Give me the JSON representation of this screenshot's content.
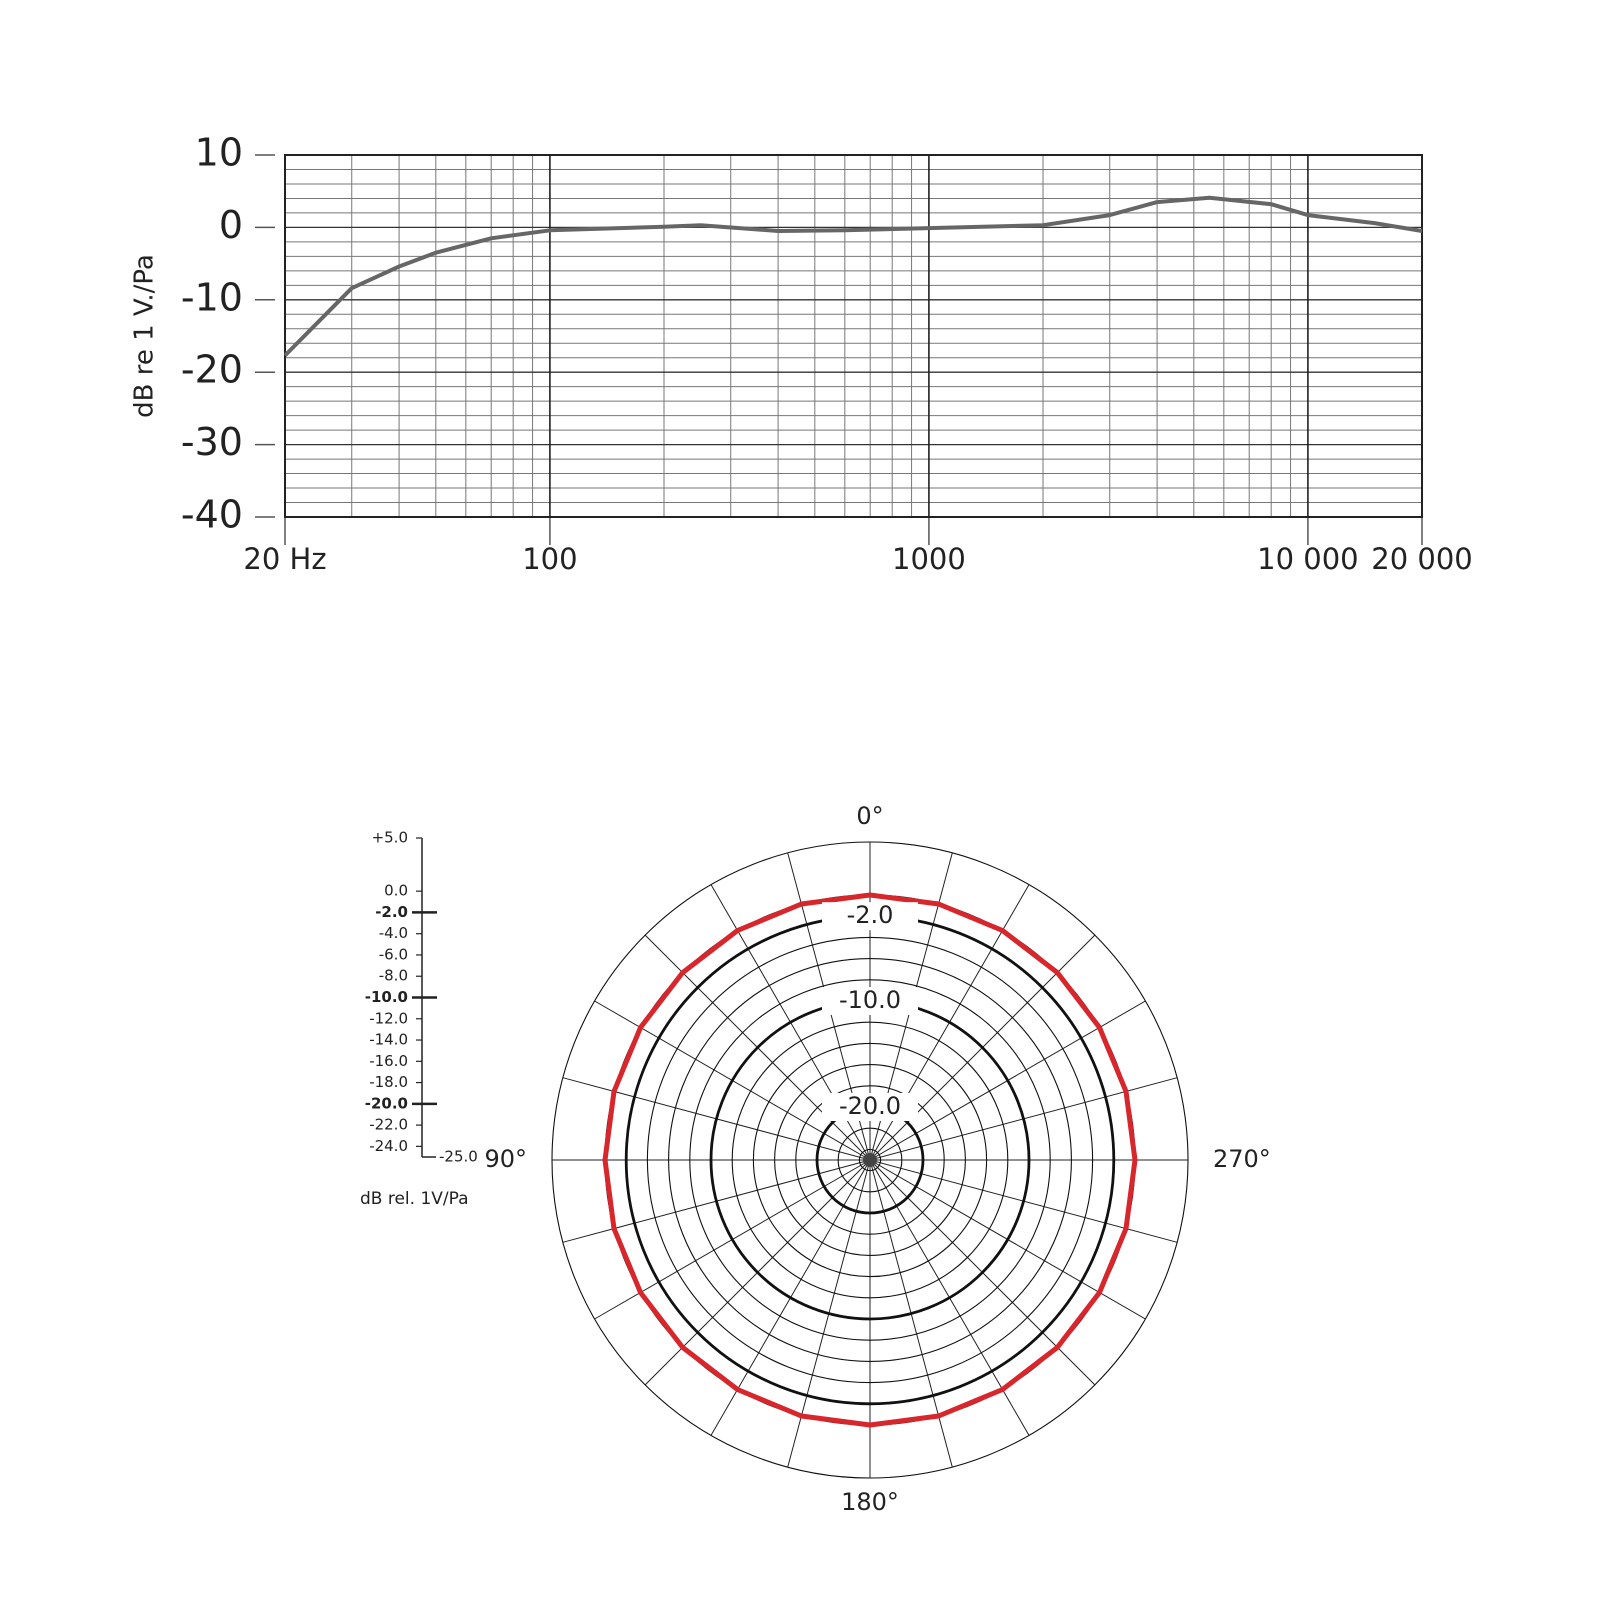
{
  "chart_data": [
    {
      "type": "line",
      "ylabel": "dB re 1 V./Pa",
      "xscale": "log",
      "x": [
        20,
        30,
        40,
        50,
        70,
        100,
        200,
        250,
        400,
        600,
        1000,
        2000,
        3000,
        4000,
        5500,
        8000,
        10000,
        15000,
        20000
      ],
      "series": [
        {
          "color": "#666666",
          "values": [
            -17.7,
            -8.4,
            -5.4,
            -3.5,
            -1.5,
            -0.4,
            0.1,
            0.3,
            -0.5,
            -0.4,
            -0.1,
            0.3,
            1.7,
            3.5,
            4.1,
            3.2,
            1.7,
            0.6,
            -0.5
          ]
        }
      ],
      "xlim": [
        20,
        20000
      ],
      "ylim": [
        -40,
        10
      ],
      "xticks": [
        {
          "value": 20,
          "label": "20 Hz"
        },
        100,
        1000,
        {
          "value": 10000,
          "label": "10 000"
        },
        {
          "value": 20000,
          "label": "20 000"
        }
      ],
      "yticks": [
        10,
        0,
        -10,
        -20,
        -30,
        -40
      ],
      "grid": true
    },
    {
      "type": "polar",
      "direction": "counterclockwise",
      "rlabel": "dB rel. 1V/Pa",
      "theta": [
        0,
        15,
        30,
        45,
        60,
        75,
        90,
        105,
        120,
        135,
        150,
        165,
        180,
        195,
        210,
        225,
        240,
        255,
        270,
        285,
        300,
        315,
        330,
        345
      ],
      "series": [
        {
          "color": "#d7262c",
          "values": [
            0,
            0,
            0,
            0,
            0,
            0,
            0,
            0,
            0,
            0,
            0,
            0,
            0,
            0,
            0,
            0,
            0,
            0,
            0,
            0,
            0,
            0,
            0,
            0
          ]
        }
      ],
      "rlim": [
        -25,
        5
      ],
      "rticks": [
        {
          "value": 5,
          "label": "+5.0"
        },
        {
          "value": 0,
          "label": "0.0"
        },
        {
          "value": -2,
          "label": "-2.0"
        },
        {
          "value": -4,
          "label": "-4.0"
        },
        {
          "value": -6,
          "label": "-6.0"
        },
        {
          "value": -8,
          "label": "-8.0"
        },
        {
          "value": -10,
          "label": "-10.0"
        },
        {
          "value": -12,
          "label": "-12.0"
        },
        {
          "value": -14,
          "label": "-14.0"
        },
        {
          "value": -16,
          "label": "-16.0"
        },
        {
          "value": -18,
          "label": "-18.0"
        },
        {
          "value": -20,
          "label": "-20.0"
        },
        {
          "value": -22,
          "label": "-22.0"
        },
        {
          "value": -24,
          "label": "-24.0"
        },
        {
          "value": -25,
          "label": "-25.0"
        }
      ],
      "major_rticks": [
        -2,
        -10,
        -20
      ],
      "thetaticks": [
        {
          "value": 0,
          "label": "0°"
        },
        {
          "value": 90,
          "label": "90°"
        },
        {
          "value": 180,
          "label": "180°"
        },
        {
          "value": 270,
          "label": "270°"
        }
      ]
    }
  ]
}
